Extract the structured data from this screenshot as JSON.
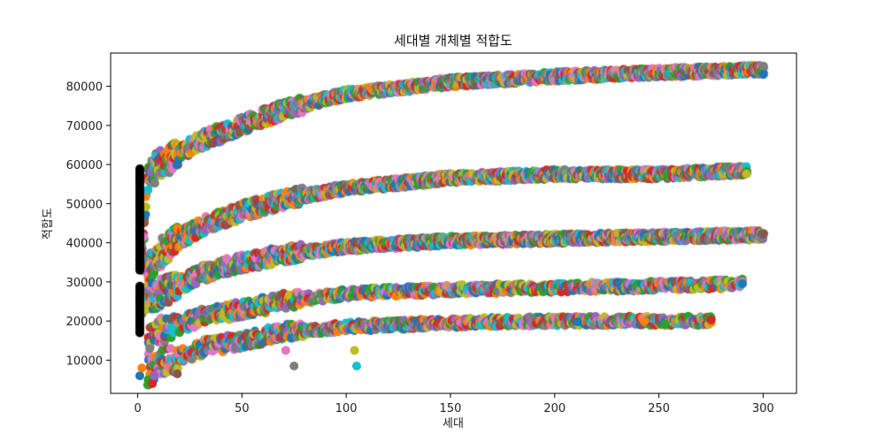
{
  "chart_data": {
    "type": "scatter",
    "title": "세대별 개체별 적합도",
    "xlabel": "세대",
    "ylabel": "적합도",
    "xlim": [
      -13,
      316
    ],
    "ylim": [
      1500,
      88500
    ],
    "x_ticks": [
      0,
      50,
      100,
      150,
      200,
      250,
      300
    ],
    "y_ticks": [
      10000,
      20000,
      30000,
      40000,
      50000,
      60000,
      70000,
      80000
    ],
    "grid": false,
    "legend": "none",
    "series_colors": [
      "#1f77b4",
      "#ff7f0e",
      "#2ca02c",
      "#d62728",
      "#9467bd",
      "#8c564b",
      "#e377c2",
      "#7f7f7f",
      "#bcbd22",
      "#17becf"
    ],
    "generation_0_color": "#000000",
    "generations": {
      "first": 0,
      "last": 300
    },
    "bands": [
      {
        "name": "band-80k",
        "x_end": 300,
        "y_at_x": [
          [
            2,
            36000
          ],
          [
            5,
            56000
          ],
          [
            10,
            60000
          ],
          [
            20,
            63000
          ],
          [
            30,
            66000
          ],
          [
            50,
            70000
          ],
          [
            70,
            74000
          ],
          [
            100,
            78000
          ],
          [
            150,
            81000
          ],
          [
            200,
            82500
          ],
          [
            250,
            83500
          ],
          [
            300,
            84200
          ]
        ]
      },
      {
        "name": "band-56k",
        "x_end": 292,
        "y_at_x": [
          [
            5,
            33000
          ],
          [
            10,
            37000
          ],
          [
            20,
            41000
          ],
          [
            30,
            44000
          ],
          [
            50,
            48000
          ],
          [
            70,
            51000
          ],
          [
            100,
            54000
          ],
          [
            150,
            56500
          ],
          [
            200,
            57500
          ],
          [
            250,
            57500
          ],
          [
            292,
            58500
          ]
        ]
      },
      {
        "name": "band-41k",
        "x_end": 300,
        "y_at_x": [
          [
            2,
            25000
          ],
          [
            10,
            27000
          ],
          [
            20,
            29000
          ],
          [
            30,
            32000
          ],
          [
            50,
            35000
          ],
          [
            70,
            37000
          ],
          [
            100,
            39000
          ],
          [
            150,
            40500
          ],
          [
            200,
            41000
          ],
          [
            250,
            41500
          ],
          [
            300,
            42000
          ]
        ]
      },
      {
        "name": "band-28k",
        "x_end": 290,
        "y_at_x": [
          [
            5,
            15000
          ],
          [
            10,
            17000
          ],
          [
            20,
            19000
          ],
          [
            30,
            21000
          ],
          [
            50,
            23000
          ],
          [
            70,
            25000
          ],
          [
            100,
            27000
          ],
          [
            150,
            28000
          ],
          [
            200,
            28500
          ],
          [
            250,
            29000
          ],
          [
            290,
            29500
          ]
        ]
      },
      {
        "name": "band-19k",
        "x_end": 275,
        "y_at_x": [
          [
            5,
            7000
          ],
          [
            10,
            9000
          ],
          [
            20,
            11000
          ],
          [
            30,
            13000
          ],
          [
            50,
            15000
          ],
          [
            70,
            17000
          ],
          [
            100,
            18500
          ],
          [
            150,
            19500
          ],
          [
            200,
            20000
          ],
          [
            250,
            20000
          ],
          [
            275,
            20000
          ]
        ]
      }
    ],
    "generation_0_ranges": [
      [
        33000,
        59000
      ],
      [
        17000,
        29000
      ]
    ],
    "outliers": [
      {
        "x": 1,
        "y": 6000
      },
      {
        "x": 2,
        "y": 8000
      },
      {
        "x": 5,
        "y": 5000
      },
      {
        "x": 7,
        "y": 4000
      },
      {
        "x": 8,
        "y": 6000
      },
      {
        "x": 19,
        "y": 6500
      },
      {
        "x": 71,
        "y": 12500
      },
      {
        "x": 75,
        "y": 8500
      },
      {
        "x": 104,
        "y": 12500
      },
      {
        "x": 105,
        "y": 8500
      },
      {
        "x": 211,
        "y": 19800
      },
      {
        "x": 243,
        "y": 20000
      },
      {
        "x": 253,
        "y": 19200
      },
      {
        "x": 275,
        "y": 20300
      }
    ]
  }
}
